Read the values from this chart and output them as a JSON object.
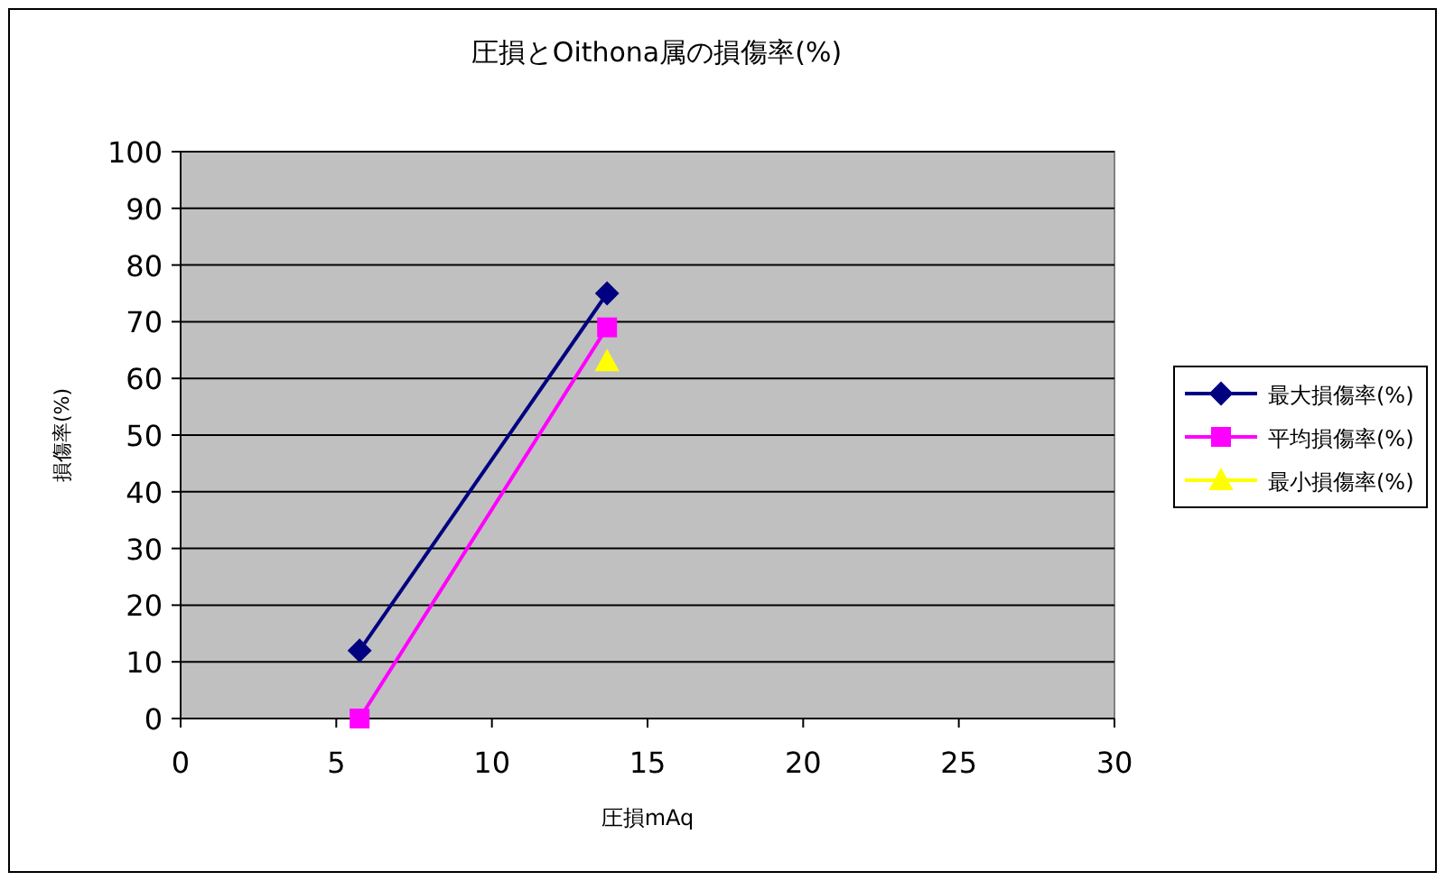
{
  "chart_data": {
    "type": "line",
    "title": "圧損とOithona属の損傷率(%)",
    "xlabel": "圧損mAq",
    "ylabel": "損傷率(%)",
    "x": [
      5.75,
      13.7
    ],
    "series": [
      {
        "name": "最大損傷率(%)",
        "color": "#000080",
        "marker": "diamond",
        "values": [
          12,
          75
        ]
      },
      {
        "name": "平均損傷率(%)",
        "color": "#ff00ff",
        "marker": "square",
        "values": [
          0,
          69
        ]
      },
      {
        "name": "最小損傷率(%)",
        "color": "#ffff00",
        "marker": "triangle",
        "values": [
          null,
          63
        ]
      }
    ],
    "xlim": [
      0,
      30
    ],
    "ylim": [
      0,
      100
    ],
    "xticks": [
      0,
      5,
      10,
      15,
      20,
      25,
      30
    ],
    "yticks": [
      0,
      10,
      20,
      30,
      40,
      50,
      60,
      70,
      80,
      90,
      100
    ],
    "grid": "y",
    "legend": "right",
    "line_style": "solid"
  }
}
